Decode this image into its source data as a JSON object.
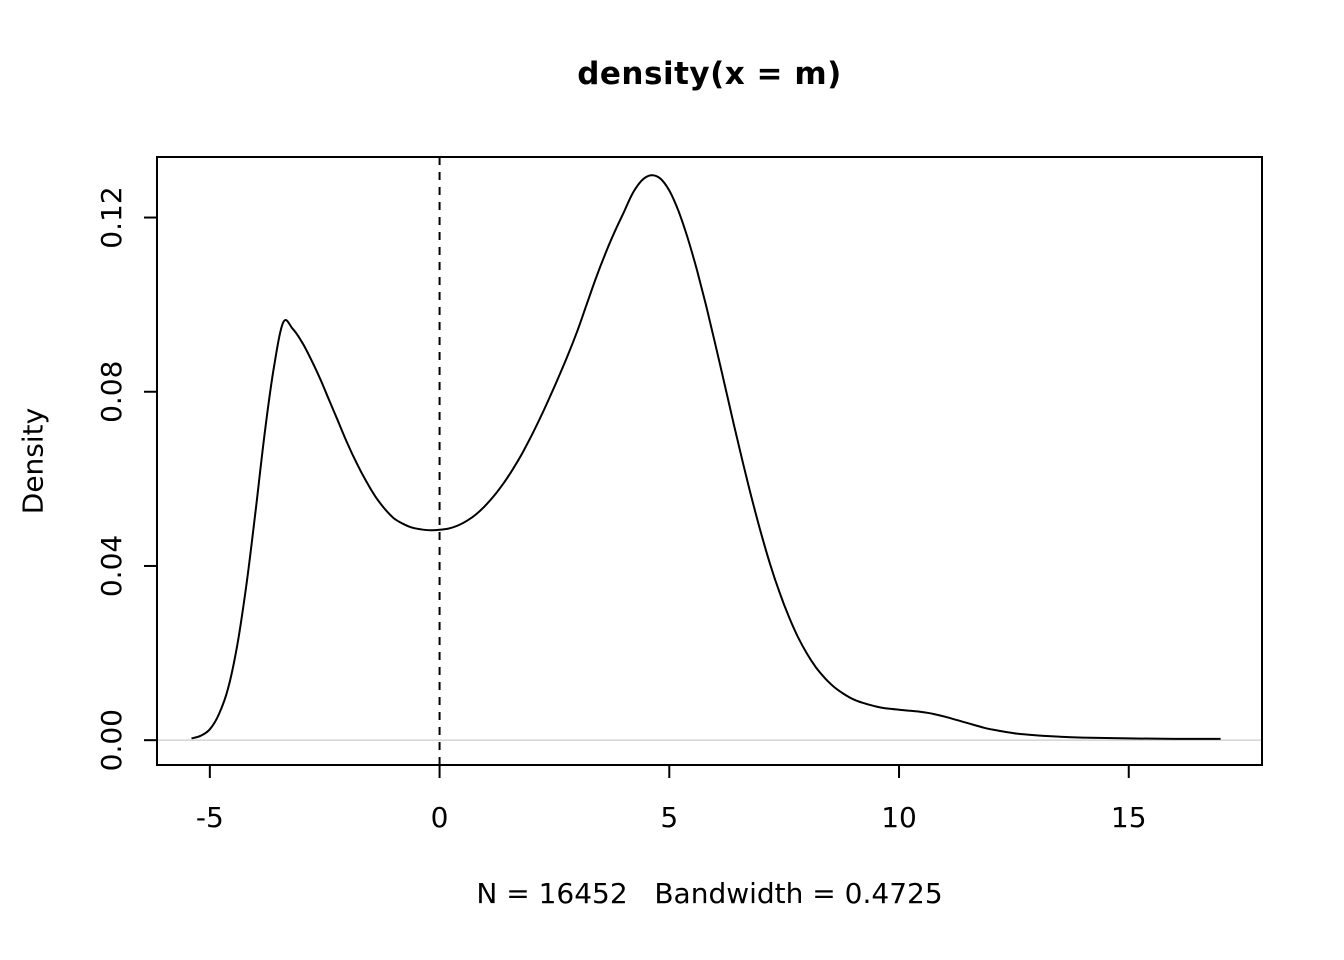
{
  "chart_data": {
    "type": "line",
    "title": "density(x = m)",
    "xlabel": "N = 16452   Bandwidth = 0.4725",
    "ylabel": "Density",
    "sample_size": 16452,
    "bandwidth": 0.4725,
    "xlim": [
      -6.15,
      17.9
    ],
    "ylim": [
      -0.0057,
      0.1339
    ],
    "x_ticks": [
      -5,
      0,
      5,
      10,
      15
    ],
    "x_tick_labels": [
      "-5",
      "0",
      "5",
      "10",
      "15"
    ],
    "y_ticks": [
      0.0,
      0.04,
      0.08,
      0.12
    ],
    "y_tick_labels": [
      "0.00",
      "0.04",
      "0.08",
      "0.12"
    ],
    "grid": false,
    "legend": "none",
    "line_color": "#000000",
    "vline": {
      "x": 0,
      "style": "dashed",
      "color": "#000000"
    },
    "zero_line": {
      "y": 0,
      "color": "#d8d8d8"
    },
    "series": [
      {
        "name": "density",
        "x": [
          -5.4,
          -5.2,
          -5.0,
          -4.8,
          -4.6,
          -4.4,
          -4.2,
          -4.0,
          -3.8,
          -3.6,
          -3.4,
          -3.2,
          -3.0,
          -2.8,
          -2.6,
          -2.4,
          -2.2,
          -2.0,
          -1.8,
          -1.6,
          -1.4,
          -1.2,
          -1.0,
          -0.8,
          -0.6,
          -0.4,
          -0.2,
          0.0,
          0.2,
          0.4,
          0.6,
          0.8,
          1.0,
          1.2,
          1.4,
          1.6,
          1.8,
          2.0,
          2.2,
          2.4,
          2.6,
          2.8,
          3.0,
          3.2,
          3.4,
          3.6,
          3.8,
          4.0,
          4.2,
          4.4,
          4.6,
          4.8,
          5.0,
          5.2,
          5.4,
          5.6,
          5.8,
          6.0,
          6.2,
          6.4,
          6.6,
          6.8,
          7.0,
          7.2,
          7.4,
          7.6,
          7.8,
          8.0,
          8.2,
          8.4,
          8.6,
          8.8,
          9.0,
          9.2,
          9.4,
          9.6,
          9.8,
          10.0,
          10.2,
          10.4,
          10.6,
          10.8,
          11.0,
          11.2,
          11.4,
          11.6,
          11.8,
          12.0,
          12.5,
          13.0,
          13.5,
          14.0,
          15.0,
          16.0,
          17.0
        ],
        "y": [
          0.0004,
          0.001,
          0.0025,
          0.006,
          0.012,
          0.022,
          0.036,
          0.053,
          0.071,
          0.086,
          0.096,
          0.0945,
          0.0915,
          0.0875,
          0.083,
          0.078,
          0.073,
          0.068,
          0.0635,
          0.0595,
          0.056,
          0.0532,
          0.051,
          0.0497,
          0.0488,
          0.0484,
          0.0482,
          0.0483,
          0.0486,
          0.0493,
          0.0504,
          0.0519,
          0.0539,
          0.0563,
          0.0591,
          0.0623,
          0.0659,
          0.0699,
          0.0742,
          0.0788,
          0.0836,
          0.0886,
          0.094,
          0.1,
          0.106,
          0.1115,
          0.1165,
          0.121,
          0.1255,
          0.1285,
          0.1297,
          0.129,
          0.1262,
          0.1215,
          0.1153,
          0.108,
          0.0998,
          0.091,
          0.0819,
          0.0727,
          0.0638,
          0.0553,
          0.0474,
          0.0402,
          0.0339,
          0.0284,
          0.0237,
          0.0198,
          0.0166,
          0.0141,
          0.0121,
          0.0106,
          0.0094,
          0.0086,
          0.008,
          0.0075,
          0.0072,
          0.007,
          0.0068,
          0.0066,
          0.0063,
          0.0059,
          0.0054,
          0.0048,
          0.0042,
          0.0036,
          0.003,
          0.0025,
          0.0016,
          0.0011,
          0.0008,
          0.0006,
          0.0004,
          0.0003,
          0.0003
        ]
      }
    ]
  }
}
